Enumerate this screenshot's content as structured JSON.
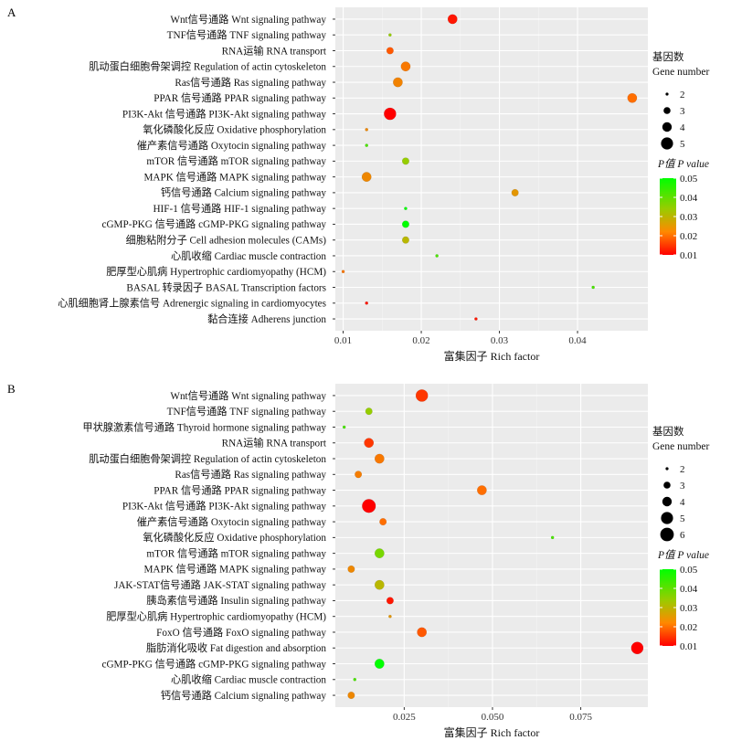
{
  "chart_data": [
    {
      "type": "scatter",
      "panel_label": "A",
      "xlabel": "富集因子 Rich factor",
      "ylabel": "",
      "xlim": [
        0.009,
        0.049
      ],
      "xticks": [
        0.01,
        0.02,
        0.03,
        0.04
      ],
      "xtick_labels": [
        "0.01",
        "0.02",
        "0.03",
        "0.04"
      ],
      "grid": true,
      "legend_size": {
        "title_cn": "基因数",
        "title_en": "Gene number",
        "levels": [
          2,
          3,
          4,
          5
        ]
      },
      "legend_color": {
        "title": "P值 P value",
        "ticks": [
          0.05,
          0.04,
          0.03,
          0.02,
          0.01
        ],
        "tick_labels": [
          "0.05",
          "0.04",
          "0.03",
          "0.02",
          "0.01"
        ]
      },
      "categories": [
        "Wnt信号通路 Wnt signaling pathway",
        "TNF信号通路 TNF signaling pathway",
        "RNA运输 RNA transport",
        "肌动蛋白细胞骨架调控 Regulation of actin cytoskeleton",
        "Ras信号通路 Ras signaling pathway",
        "PPAR 信号通路 PPAR signaling pathway",
        "PI3K-Akt 信号通路 PI3K-Akt signaling pathway",
        "氧化磷酸化反应 Oxidative phosphorylation",
        "催产素信号通路 Oxytocin signaling pathway",
        "mTOR 信号通路 mTOR signaling pathway",
        "MAPK 信号通路 MAPK signaling pathway",
        "钙信号通路 Calcium signaling pathway",
        "HIF-1 信号通路 HIF-1 signaling pathway",
        "cGMP-PKG 信号通路 cGMP-PKG signaling pathway",
        "细胞粘附分子 Cell adhesion molecules (CAMs)",
        "心肌收缩 Cardiac muscle contraction",
        "肥厚型心肌病 Hypertrophic  cardiomyopathy (HCM)",
        "BASAL 转录因子 BASAL Transcription factors",
        "心肌细胞肾上腺素信号 Adrenergic signaling in cardiomyocytes",
        "黏合连接 Adherens junction"
      ],
      "x": [
        0.024,
        0.016,
        0.016,
        0.018,
        0.017,
        0.047,
        0.016,
        0.013,
        0.013,
        0.018,
        0.013,
        0.032,
        0.018,
        0.018,
        0.018,
        0.022,
        0.01,
        0.042,
        0.013,
        0.027
      ],
      "gene_count": [
        4,
        2,
        3,
        4,
        4,
        4,
        5,
        2,
        2,
        3,
        4,
        3,
        2,
        3,
        3,
        2,
        2,
        2,
        2,
        2
      ],
      "p_value": [
        0.012,
        0.04,
        0.018,
        0.022,
        0.024,
        0.02,
        0.01,
        0.025,
        0.045,
        0.04,
        0.025,
        0.028,
        0.05,
        0.05,
        0.035,
        0.045,
        0.022,
        0.045,
        0.012,
        0.012
      ]
    },
    {
      "type": "scatter",
      "panel_label": "B",
      "xlabel": "富集因子 Rich factor",
      "ylabel": "",
      "xlim": [
        0.0055,
        0.094
      ],
      "xticks": [
        0.025,
        0.05,
        0.075
      ],
      "xtick_labels": [
        "0.025",
        "0.050",
        "0.075"
      ],
      "grid": true,
      "legend_size": {
        "title_cn": "基因数",
        "title_en": "Gene number",
        "levels": [
          2,
          3,
          4,
          5,
          6
        ]
      },
      "legend_color": {
        "title": "P值 P value",
        "ticks": [
          0.05,
          0.04,
          0.03,
          0.02,
          0.01
        ],
        "tick_labels": [
          "0.05",
          "0.04",
          "0.03",
          "0.02",
          "0.01"
        ]
      },
      "categories": [
        "Wnt信号通路 Wnt signaling pathway",
        "TNF信号通路 TNF signaling pathway",
        "甲状腺激素信号通路 Thyroid hormone signaling pathway",
        "RNA运输 RNA transport",
        "肌动蛋白细胞骨架调控 Regulation of actin cytoskeleton",
        "Ras信号通路 Ras signaling pathway",
        "PPAR 信号通路 PPAR signaling pathway",
        "PI3K-Akt 信号通路 PI3K-Akt signaling pathway",
        "催产素信号通路 Oxytocin signaling pathway",
        "氧化磷酸化反应 Oxidative phosphorylation",
        "mTOR 信号通路 mTOR signaling pathway",
        "MAPK 信号通路 MAPK signaling pathway",
        "JAK-STAT信号通路 JAK-STAT signaling pathway",
        "胰岛素信号通路 Insulin signaling pathway",
        "肥厚型心肌病 Hypertrophic cardiomyopathy (HCM)",
        "FoxO 信号通路 FoxO signaling pathway",
        "脂肪消化吸收 Fat digestion and absorption",
        "cGMP-PKG 信号通路 cGMP-PKG signaling pathway",
        "心肌收缩 Cardiac muscle contraction",
        "钙信号通路 Calcium signaling pathway"
      ],
      "x": [
        0.03,
        0.015,
        0.008,
        0.015,
        0.018,
        0.012,
        0.047,
        0.015,
        0.019,
        0.067,
        0.018,
        0.01,
        0.018,
        0.021,
        0.021,
        0.03,
        0.091,
        0.018,
        0.011,
        0.01
      ],
      "gene_count": [
        5,
        3,
        2,
        4,
        4,
        3,
        4,
        6,
        3,
        2,
        4,
        3,
        4,
        3,
        2,
        4,
        5,
        4,
        2,
        3
      ],
      "p_value": [
        0.015,
        0.04,
        0.045,
        0.015,
        0.022,
        0.023,
        0.02,
        0.01,
        0.02,
        0.045,
        0.042,
        0.025,
        0.035,
        0.012,
        0.028,
        0.018,
        0.01,
        0.05,
        0.045,
        0.025
      ]
    }
  ]
}
